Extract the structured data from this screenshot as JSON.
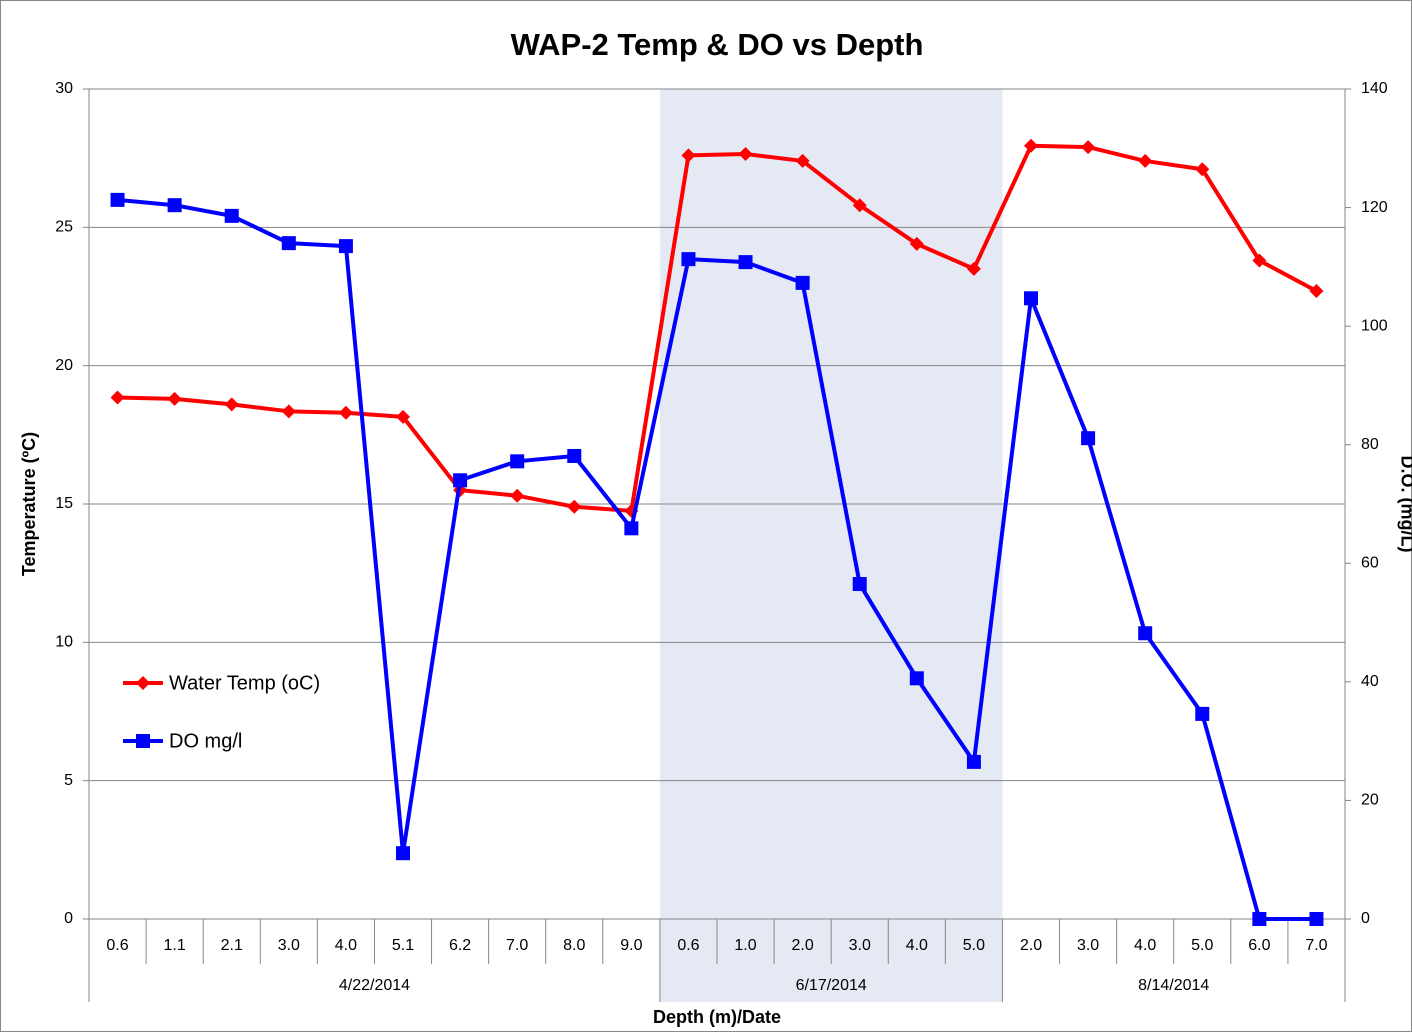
{
  "chart_data": {
    "type": "line",
    "title": "WAP-2 Temp & DO vs Depth",
    "x_label": "Depth (m)/Date",
    "y_label": "Temperature (ºC)",
    "y2_label": "D.O. (mg/L)",
    "groups": [
      {
        "name": "4/22/2014",
        "categories": [
          "0.6",
          "1.1",
          "2.1",
          "3.0",
          "4.0",
          "5.1",
          "6.2",
          "7.0",
          "8.0",
          "9.0"
        ],
        "highlight": false
      },
      {
        "name": "6/17/2014",
        "categories": [
          "0.6",
          "1.0",
          "2.0",
          "3.0",
          "4.0",
          "5.0"
        ],
        "highlight": true
      },
      {
        "name": "8/14/2014",
        "categories": [
          "2.0",
          "3.0",
          "4.0",
          "5.0",
          "6.0",
          "7.0"
        ],
        "highlight": false
      }
    ],
    "highlight_color": "#e4e9f4",
    "series": [
      {
        "name": "Water Temp (oC)",
        "color": "#ff0000",
        "marker": "diamond",
        "values": [
          18.85,
          18.8,
          18.6,
          18.35,
          18.3,
          18.15,
          15.5,
          15.3,
          14.9,
          14.75,
          27.6,
          27.65,
          27.4,
          25.8,
          24.4,
          23.5,
          27.95,
          27.9,
          27.4,
          27.1,
          23.8,
          22.7
        ]
      },
      {
        "name": "DO mg/l",
        "color": "#0000ff",
        "marker": "square",
        "axis": "y2",
        "values": [
          121.3,
          120.4,
          118.6,
          114,
          113.5,
          11.1,
          74,
          77.2,
          78.1,
          65.9,
          111.3,
          110.8,
          107.3,
          56.5,
          40.6,
          26.5,
          104.7,
          81.1,
          48.2,
          34.6,
          0,
          0
        ]
      }
    ],
    "ylim": [
      0,
      30
    ],
    "yticks": [
      0,
      5,
      10,
      15,
      20,
      25,
      30
    ],
    "y2lim": [
      0,
      140
    ],
    "y2ticks": [
      0,
      20,
      40,
      60,
      80,
      100,
      120,
      140
    ],
    "grid": true,
    "legend": "left"
  }
}
